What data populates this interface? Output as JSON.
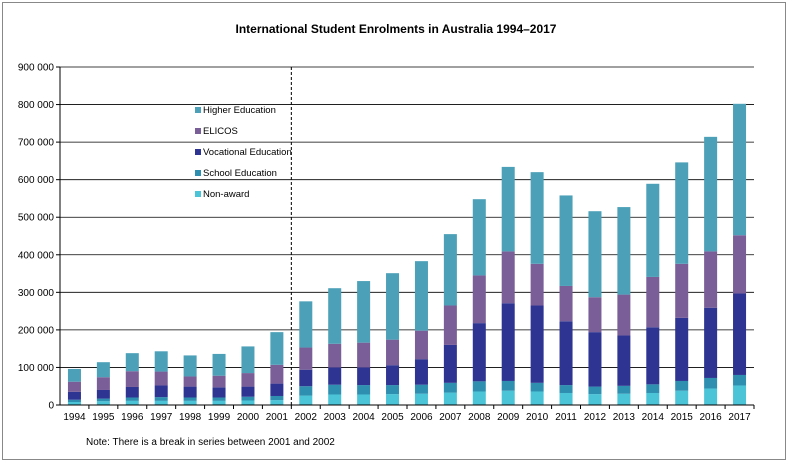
{
  "chart_data": {
    "type": "bar",
    "stacked": true,
    "title": "International Student Enrolments  in Australia 1994–2017",
    "xlabel": "",
    "ylabel": "",
    "ylim": [
      0,
      900000
    ],
    "yticks": [
      0,
      100000,
      200000,
      300000,
      400000,
      500000,
      600000,
      700000,
      800000,
      900000
    ],
    "ytick_labels": [
      "0",
      "100 000",
      "200 000",
      "300 000",
      "400 000",
      "500 000",
      "600 000",
      "700 000",
      "800 000",
      "900 000"
    ],
    "grid": "horizontal",
    "legend_position": "upper-left",
    "break_after_category": "2001",
    "categories": [
      "1994",
      "1995",
      "1996",
      "1997",
      "1998",
      "1999",
      "2000",
      "2001",
      "2002",
      "2003",
      "2004",
      "2005",
      "2006",
      "2007",
      "2008",
      "2009",
      "2010",
      "2011",
      "2012",
      "2013",
      "2014",
      "2015",
      "2016",
      "2017"
    ],
    "series": [
      {
        "name": "Non-award",
        "color": "#4cc4d8",
        "values": [
          8000,
          10000,
          11000,
          11000,
          11000,
          11000,
          12000,
          13000,
          25000,
          28000,
          28000,
          29000,
          30000,
          33000,
          36000,
          38000,
          36000,
          32000,
          29000,
          30000,
          32000,
          38000,
          44000,
          52000
        ]
      },
      {
        "name": "School Education",
        "color": "#2e8fb0",
        "values": [
          6000,
          7000,
          9000,
          10000,
          9000,
          9000,
          10000,
          11000,
          25000,
          26000,
          25000,
          24000,
          24000,
          26000,
          27000,
          26000,
          23000,
          21000,
          20000,
          21000,
          23000,
          26000,
          28000,
          28000
        ]
      },
      {
        "name": "Vocational Education",
        "color": "#2d3492",
        "values": [
          21000,
          23000,
          28000,
          31000,
          29000,
          27000,
          27000,
          33000,
          44000,
          46000,
          47000,
          53000,
          68000,
          101000,
          155000,
          207000,
          206000,
          170000,
          145000,
          134000,
          152000,
          168000,
          187000,
          217000
        ]
      },
      {
        "name": "ELICOS",
        "color": "#7a5e98",
        "values": [
          27000,
          34000,
          42000,
          37000,
          27000,
          31000,
          36000,
          50000,
          59000,
          63000,
          66000,
          68000,
          76000,
          105000,
          127000,
          138000,
          111000,
          94000,
          93000,
          109000,
          134000,
          144000,
          150000,
          155000
        ]
      },
      {
        "name": "Higher Education",
        "color": "#4ca0b8",
        "values": [
          34000,
          40000,
          48000,
          54000,
          56000,
          58000,
          71000,
          87000,
          123000,
          148000,
          164000,
          177000,
          185000,
          190000,
          203000,
          225000,
          244000,
          241000,
          229000,
          233000,
          248000,
          270000,
          305000,
          350000
        ]
      }
    ],
    "legend": [
      "Higher Education",
      "ELICOS",
      "Vocational Education",
      "School Education",
      "Non-award"
    ],
    "note": "Note: There is a break in series between 2001 and 2002"
  }
}
